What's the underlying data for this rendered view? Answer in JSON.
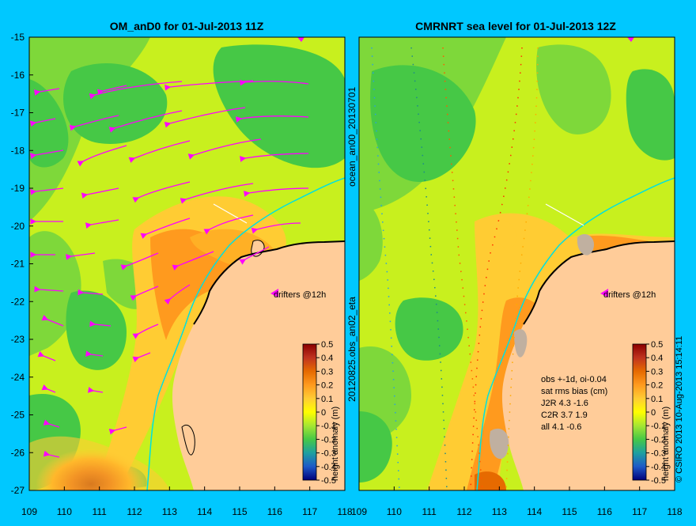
{
  "colors": {
    "background": "#00c8ff",
    "land": "#ffcc99",
    "arrow": "#ff00ff",
    "current": "#00e0e0"
  },
  "left_panel": {
    "title": "OM_anD0 for 01-Jul-2013 11Z",
    "side_label": "20120825.obs_an02_eta",
    "drifters_label": "drifters @12h",
    "colorbar_label": "height anomaly (m)"
  },
  "right_panel": {
    "title": "CMRNRT sea level  for 01-Jul-2013 12Z",
    "drifters_label": "drifters @12h",
    "colorbar_label": "height anomaly (m)",
    "stats": [
      "obs +-1d, oi-0.04",
      "sat rms bias (cm)",
      "J2R   4.3 -1.6",
      "C2R   3.7 1.9",
      "all 4.1 -0.6"
    ]
  },
  "middle_label": "ocean_an00_20130701",
  "credit": "© CSIRO 2013   10-Aug-2013 15:14:11",
  "axes": {
    "y_ticks": [
      "-15",
      "-16",
      "-17",
      "-18",
      "-19",
      "-20",
      "-21",
      "-22",
      "-23",
      "-24",
      "-25",
      "-26",
      "-27"
    ],
    "x_ticks": [
      "109",
      "110",
      "111",
      "112",
      "113",
      "114",
      "115",
      "116",
      "117",
      "118"
    ]
  },
  "colorbar": {
    "ticks": [
      "0.5",
      "0.4",
      "0.3",
      "0.2",
      "0.1",
      "0",
      "-0.1",
      "-0.2",
      "-0.3",
      "-0.4",
      "-0.5"
    ],
    "stops": [
      "#8b0000",
      "#c0331f",
      "#e66a00",
      "#ff9a1e",
      "#ffcc33",
      "#ffff00",
      "#a6e632",
      "#46c846",
      "#1ea0a0",
      "#1e5ac8",
      "#00007a"
    ]
  }
}
